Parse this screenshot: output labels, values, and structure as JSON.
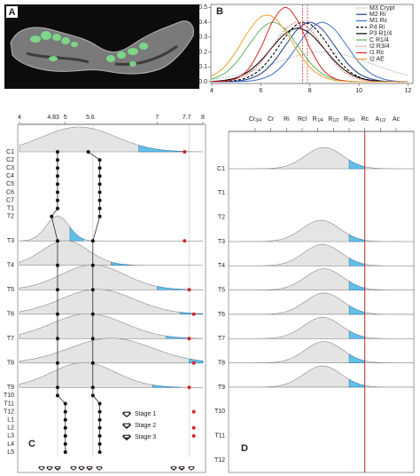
{
  "image_panel": {
    "label": "A"
  },
  "chart_data": [
    {
      "type": "line",
      "label": "B",
      "x": [
        4,
        4.5,
        5,
        5.5,
        6,
        6.5,
        7,
        7.5,
        8,
        8.5,
        9,
        9.5,
        10,
        10.5,
        11,
        11.5,
        12
      ],
      "xlim": [
        4,
        12.2
      ],
      "xticks": [
        4,
        6,
        8,
        10,
        12
      ],
      "ylim": [
        0,
        0.52
      ],
      "yticks": [
        {
          "value": 0,
          "label": "0.0"
        },
        0.1,
        0.2,
        0.3,
        0.4,
        0.5
      ],
      "vlines": [
        7.7,
        7.9
      ],
      "vline_color": "#d62728",
      "series": [
        {
          "name": "M3 Crypt",
          "color": "#999999",
          "style": "dotted",
          "values": [
            0.016,
            0.027,
            0.043,
            0.065,
            0.092,
            0.121,
            0.151,
            0.176,
            0.194,
            0.2,
            0.194,
            0.176,
            0.151,
            0.121,
            0.092,
            0.065,
            0.043
          ]
        },
        {
          "name": "M2 Ri",
          "color": "#1f3b8c",
          "style": "solid",
          "values": [
            0,
            0.001,
            0.004,
            0.018,
            0.054,
            0.13,
            0.243,
            0.353,
            0.4,
            0.353,
            0.243,
            0.13,
            0.054,
            0.018,
            0.004,
            0.001,
            0
          ]
        },
        {
          "name": "M1 Rc",
          "color": "#3f74c8",
          "style": "solid",
          "values": [
            0,
            0,
            0.001,
            0.004,
            0.018,
            0.054,
            0.13,
            0.243,
            0.353,
            0.4,
            0.353,
            0.243,
            0.13,
            0.054,
            0.018,
            0.004,
            0.001
          ]
        },
        {
          "name": "P4 Ri",
          "color": "#000000",
          "style": "dashed",
          "values": [
            0,
            0.002,
            0.009,
            0.032,
            0.086,
            0.183,
            0.302,
            0.388,
            0.388,
            0.302,
            0.183,
            0.086,
            0.032,
            0.009,
            0.002,
            0,
            0
          ]
        },
        {
          "name": "P3 R1/4",
          "color": "#000000",
          "style": "solid",
          "values": [
            0.002,
            0.009,
            0.027,
            0.069,
            0.142,
            0.238,
            0.325,
            0.36,
            0.325,
            0.238,
            0.142,
            0.069,
            0.027,
            0.009,
            0.002,
            0,
            0
          ]
        },
        {
          "name": "C R1/4",
          "color": "#5cb85c",
          "style": "solid",
          "values": [
            0.018,
            0.054,
            0.13,
            0.243,
            0.353,
            0.4,
            0.353,
            0.243,
            0.13,
            0.054,
            0.018,
            0.004,
            0.001,
            0,
            0,
            0,
            0
          ]
        },
        {
          "name": "I2 R3/4",
          "color": "#d62728",
          "style": "dotted",
          "values": [
            0.001,
            0.004,
            0.018,
            0.054,
            0.13,
            0.243,
            0.353,
            0.4,
            0.353,
            0.243,
            0.13,
            0.054,
            0.018,
            0.004,
            0.001,
            0,
            0
          ]
        },
        {
          "name": "I1 Rc",
          "color": "#d62728",
          "style": "solid",
          "values": [
            0,
            0.004,
            0.022,
            0.086,
            0.229,
            0.411,
            0.5,
            0.411,
            0.229,
            0.086,
            0.022,
            0.004,
            0,
            0,
            0,
            0,
            0
          ]
        },
        {
          "name": "I2 AE",
          "color": "#f0a030",
          "style": "solid",
          "values": [
            0.036,
            0.097,
            0.206,
            0.34,
            0.436,
            0.436,
            0.34,
            0.206,
            0.097,
            0.036,
            0.01,
            0.002,
            0,
            0,
            0,
            0,
            0
          ]
        }
      ]
    },
    {
      "type": "ridgeline",
      "label": "C",
      "xlim": [
        4,
        8
      ],
      "xticks": [
        4,
        5,
        7,
        8
      ],
      "marker_ticks": [
        4.83,
        5.6,
        7.7
      ],
      "marker_colors": [
        "#222222",
        "#222222",
        "#d62728"
      ],
      "categories": [
        "C1",
        "C2",
        "C3",
        "C4",
        "C5",
        "C6",
        "C7",
        "T1",
        "T2",
        "T3",
        "T4",
        "T5",
        "T6",
        "T7",
        "T8",
        "T9",
        "T10",
        "T11",
        "T12",
        "L1",
        "L2",
        "L3",
        "L4",
        "L5"
      ],
      "ridges": [
        {
          "mean": 5.3,
          "sd": 0.8,
          "shade": [
            6.6,
            7.6
          ]
        },
        null,
        null,
        null,
        null,
        null,
        null,
        null,
        null,
        {
          "mean": 4.83,
          "sd": 0.25,
          "shade": [
            5.1,
            5.4
          ]
        },
        {
          "mean": 5.0,
          "sd": 0.5,
          "shade": [
            6.0,
            6.4
          ]
        },
        {
          "mean": 5.6,
          "sd": 0.7,
          "shade": [
            7.0,
            7.7
          ]
        },
        {
          "mean": 5.7,
          "sd": 0.8,
          "shade": [
            7.5,
            8.0
          ]
        },
        {
          "mean": 5.5,
          "sd": 0.8,
          "shade": [
            7.2,
            7.7
          ]
        },
        {
          "mean": 6.0,
          "sd": 0.9,
          "shade": [
            7.7,
            8.0
          ]
        },
        {
          "mean": 5.4,
          "sd": 0.7,
          "shade": [
            6.9,
            7.5
          ]
        },
        null,
        null,
        null,
        null,
        null,
        null,
        null,
        null
      ],
      "ridge_color": "#e4e4e4",
      "shade_color": "#62c0e6",
      "series": [
        {
          "color": "#111111",
          "connect": true,
          "values": [
            4.83,
            4.83,
            4.83,
            4.83,
            4.83,
            4.83,
            4.83,
            4.83,
            4.7,
            4.83,
            4.83,
            4.83,
            4.83,
            4.83,
            4.83,
            4.83,
            4.83,
            5.0,
            5.0,
            5.0,
            5.0,
            5.0,
            5.0,
            5.0
          ]
        },
        {
          "color": "#111111",
          "connect": true,
          "values": [
            5.5,
            5.75,
            5.75,
            5.75,
            5.75,
            5.75,
            5.75,
            5.75,
            5.75,
            5.6,
            5.6,
            5.6,
            5.6,
            5.6,
            5.6,
            5.6,
            5.6,
            5.75,
            5.75,
            5.75,
            5.75,
            5.75,
            5.75,
            5.75
          ]
        },
        {
          "color": "#d62728",
          "connect": false,
          "values": [
            7.6,
            null,
            null,
            null,
            null,
            null,
            null,
            null,
            null,
            7.6,
            null,
            7.7,
            7.8,
            7.7,
            7.8,
            7.7,
            null,
            null,
            7.8,
            null,
            7.8,
            7.8,
            null,
            null
          ]
        }
      ],
      "stages": [
        "Stage 1",
        "Stage 2",
        "Stage 3"
      ]
    },
    {
      "type": "ridgeline-categorical",
      "label": "D",
      "xcategories": [
        "Cr3/4",
        "Cr",
        "Ri",
        "Rcl",
        "R1/4",
        "R1/2",
        "R3/4",
        "Rc",
        "A1/2",
        "Ac"
      ],
      "vline_index": 7,
      "vline_color": "#c0282d",
      "categories": [
        "C1",
        "T1",
        "T2",
        "T3",
        "T4",
        "T5",
        "T6",
        "T7",
        "T8",
        "T9",
        "T10",
        "T11",
        "T12"
      ],
      "ridges": [
        {
          "mean": 4.4,
          "sd": 1.2,
          "shade": [
            6,
            7
          ]
        },
        null,
        null,
        {
          "mean": 4.2,
          "sd": 1.2,
          "shade": [
            6,
            7
          ]
        },
        {
          "mean": 4.3,
          "sd": 1.2,
          "shade": [
            6,
            7
          ]
        },
        {
          "mean": 4.4,
          "sd": 1.2,
          "shade": [
            6,
            7
          ]
        },
        {
          "mean": 4.4,
          "sd": 1.2,
          "shade": [
            6,
            7
          ]
        },
        {
          "mean": 4.3,
          "sd": 1.2,
          "shade": [
            6,
            7
          ]
        },
        {
          "mean": 4.4,
          "sd": 1.2,
          "shade": [
            6,
            7
          ]
        },
        {
          "mean": 4.3,
          "sd": 1.2,
          "shade": [
            6,
            7
          ]
        },
        null,
        null,
        null
      ],
      "ridge_color": "#e4e4e4",
      "shade_color": "#62c0e6"
    }
  ]
}
